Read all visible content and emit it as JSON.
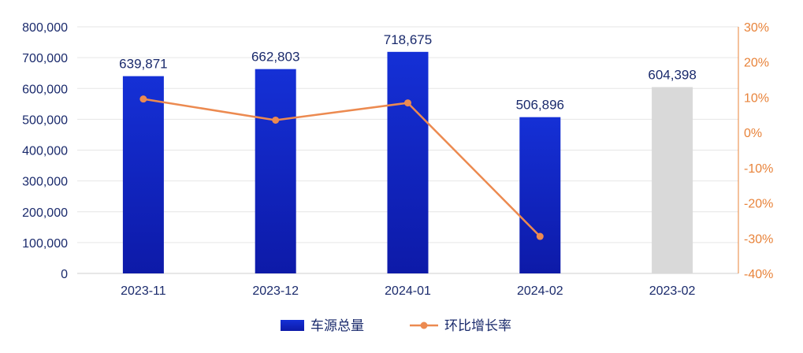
{
  "chart_data": {
    "type": "bar",
    "categories": [
      "2023-11",
      "2023-12",
      "2024-01",
      "2024-02",
      "2023-02"
    ],
    "series": [
      {
        "name": "车源总量",
        "type": "bar",
        "axis": "left",
        "values": [
          639871,
          662803,
          718675,
          506896,
          604398
        ],
        "value_labels": [
          "639,871",
          "662,803",
          "718,675",
          "506,896",
          "604,398"
        ],
        "colors": [
          "#1528c8",
          "#1528c8",
          "#1528c8",
          "#1528c8",
          "#d9d9d9"
        ]
      },
      {
        "name": "环比增长率",
        "type": "line",
        "axis": "right",
        "values": [
          9.5,
          3.5,
          8.4,
          -29.5,
          null
        ],
        "color": "#ec8a50"
      }
    ],
    "left_axis": {
      "ylim": [
        0,
        800000
      ],
      "ticks": [
        0,
        100000,
        200000,
        300000,
        400000,
        500000,
        600000,
        700000,
        800000
      ],
      "tick_labels": [
        "0",
        "100,000",
        "200,000",
        "300,000",
        "400,000",
        "500,000",
        "600,000",
        "700,000",
        "800,000"
      ]
    },
    "right_axis": {
      "ylim": [
        -40,
        30
      ],
      "ticks": [
        -40,
        -30,
        -20,
        -10,
        0,
        10,
        20,
        30
      ],
      "tick_labels": [
        "-40%",
        "-30%",
        "-20%",
        "-10%",
        "0%",
        "10%",
        "20%",
        "30%"
      ],
      "color": "#e8833a"
    },
    "grid": true,
    "legend_position": "bottom-center",
    "legend": [
      {
        "label": "车源总量",
        "marker": "bar",
        "color": "#1528c8"
      },
      {
        "label": "环比增长率",
        "marker": "line",
        "color": "#ec8a50"
      }
    ]
  }
}
